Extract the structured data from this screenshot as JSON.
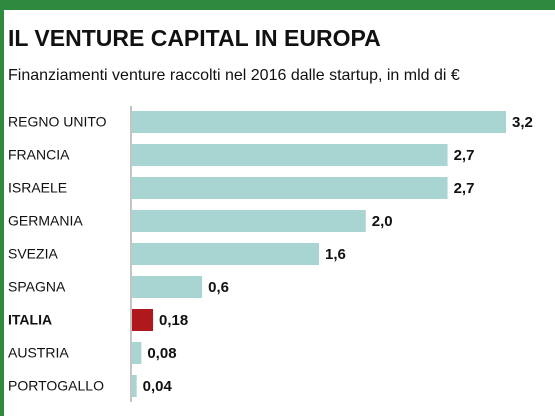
{
  "chart_data": {
    "type": "bar",
    "orientation": "horizontal",
    "title": "IL VENTURE CAPITAL IN EUROPA",
    "subtitle": "Finanziamenti venture raccolti nel 2016 dalle startup, in mld di €",
    "categories": [
      "REGNO UNITO",
      "FRANCIA",
      "ISRAELE",
      "GERMANIA",
      "SVEZIA",
      "SPAGNA",
      "ITALIA",
      "AUSTRIA",
      "PORTOGALLO"
    ],
    "values": [
      3.2,
      2.7,
      2.7,
      2.0,
      1.6,
      0.6,
      0.18,
      0.08,
      0.04
    ],
    "value_labels": [
      "3,2",
      "2,7",
      "2,7",
      "2,0",
      "1,6",
      "0,6",
      "0,18",
      "0,08",
      "0,04"
    ],
    "colors": [
      "#a8d4d2",
      "#a8d4d2",
      "#a8d4d2",
      "#a8d4d2",
      "#a8d4d2",
      "#a8d4d2",
      "#b0191c",
      "#a8d4d2",
      "#a8d4d2"
    ],
    "highlight": "ITALIA"
  }
}
